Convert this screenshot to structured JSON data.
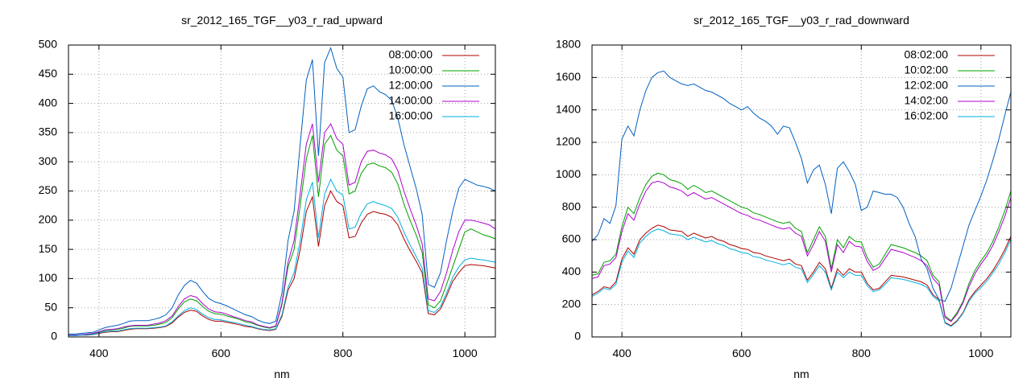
{
  "chart_data": [
    {
      "type": "line",
      "title": "sr_2012_165_TGF__y03_r_rad_upward",
      "xlabel": "nm",
      "ylabel": "",
      "xlim": [
        350,
        1050
      ],
      "ylim": [
        0,
        500
      ],
      "xticks": [
        400,
        600,
        800,
        1000
      ],
      "yticks": [
        0,
        50,
        100,
        150,
        200,
        250,
        300,
        350,
        400,
        450,
        500
      ],
      "grid": true,
      "legend_position": "top-right",
      "x": [
        350,
        360,
        370,
        380,
        390,
        400,
        410,
        420,
        430,
        440,
        450,
        460,
        470,
        480,
        490,
        500,
        510,
        520,
        530,
        540,
        550,
        560,
        570,
        580,
        590,
        600,
        610,
        620,
        630,
        640,
        650,
        660,
        670,
        680,
        690,
        700,
        710,
        720,
        730,
        740,
        750,
        760,
        770,
        780,
        790,
        800,
        810,
        820,
        830,
        840,
        850,
        860,
        870,
        880,
        890,
        900,
        910,
        920,
        930,
        940,
        950,
        960,
        970,
        980,
        990,
        1000,
        1010,
        1020,
        1030,
        1040,
        1050
      ],
      "series": [
        {
          "name": "08:00:00",
          "color": "#b00000",
          "values": [
            2,
            2,
            3,
            3,
            4,
            6,
            8,
            9,
            9,
            11,
            13,
            14,
            14,
            14,
            15,
            16,
            18,
            24,
            34,
            42,
            46,
            44,
            36,
            30,
            27,
            27,
            25,
            23,
            21,
            18,
            17,
            14,
            12,
            11,
            13,
            35,
            80,
            100,
            150,
            215,
            240,
            155,
            225,
            250,
            232,
            225,
            170,
            172,
            195,
            210,
            215,
            212,
            210,
            205,
            192,
            168,
            148,
            130,
            110,
            40,
            38,
            48,
            70,
            95,
            110,
            122,
            124,
            123,
            122,
            120,
            118
          ]
        },
        {
          "name": "10:00:00",
          "color": "#00a000",
          "values": [
            3,
            3,
            4,
            4,
            5,
            8,
            11,
            12,
            13,
            15,
            18,
            19,
            19,
            19,
            20,
            22,
            25,
            33,
            48,
            60,
            65,
            62,
            52,
            44,
            40,
            39,
            36,
            33,
            30,
            26,
            24,
            20,
            17,
            15,
            18,
            55,
            120,
            150,
            225,
            305,
            345,
            240,
            330,
            345,
            320,
            310,
            245,
            250,
            280,
            295,
            298,
            293,
            290,
            282,
            262,
            228,
            200,
            175,
            145,
            55,
            50,
            62,
            90,
            120,
            150,
            180,
            185,
            180,
            175,
            172,
            168
          ]
        },
        {
          "name": "12:00:00",
          "color": "#0060c0",
          "values": [
            5,
            5,
            6,
            7,
            8,
            12,
            16,
            18,
            20,
            23,
            27,
            28,
            28,
            28,
            30,
            33,
            38,
            50,
            72,
            88,
            97,
            92,
            78,
            66,
            60,
            57,
            53,
            48,
            43,
            38,
            35,
            29,
            25,
            23,
            27,
            75,
            165,
            215,
            330,
            440,
            475,
            310,
            470,
            495,
            460,
            445,
            350,
            355,
            395,
            425,
            430,
            420,
            415,
            405,
            375,
            330,
            292,
            255,
            210,
            90,
            85,
            110,
            165,
            215,
            255,
            270,
            265,
            260,
            258,
            255,
            250
          ]
        },
        {
          "name": "14:00:00",
          "color": "#b000d0",
          "values": [
            3,
            3,
            4,
            5,
            6,
            9,
            12,
            13,
            14,
            17,
            19,
            20,
            20,
            20,
            22,
            24,
            28,
            36,
            52,
            65,
            71,
            68,
            57,
            48,
            43,
            42,
            39,
            35,
            32,
            28,
            26,
            21,
            18,
            16,
            19,
            58,
            128,
            165,
            245,
            330,
            365,
            265,
            350,
            365,
            340,
            330,
            260,
            265,
            300,
            318,
            320,
            315,
            312,
            305,
            285,
            250,
            220,
            192,
            160,
            65,
            62,
            78,
            110,
            148,
            180,
            200,
            200,
            198,
            195,
            192,
            185
          ]
        },
        {
          "name": "16:00:00",
          "color": "#00b0e0",
          "values": [
            2,
            2,
            3,
            4,
            4,
            7,
            9,
            10,
            10,
            12,
            14,
            15,
            15,
            15,
            16,
            17,
            19,
            26,
            36,
            45,
            50,
            47,
            39,
            33,
            30,
            29,
            27,
            25,
            23,
            20,
            18,
            15,
            13,
            12,
            14,
            38,
            85,
            110,
            165,
            235,
            265,
            170,
            245,
            270,
            250,
            243,
            185,
            188,
            212,
            228,
            232,
            228,
            225,
            220,
            205,
            180,
            158,
            138,
            118,
            45,
            42,
            52,
            75,
            102,
            120,
            132,
            135,
            133,
            132,
            130,
            128
          ]
        }
      ]
    },
    {
      "type": "line",
      "title": "sr_2012_165_TGF__y03_r_rad_downward",
      "xlabel": "nm",
      "ylabel": "",
      "xlim": [
        350,
        1050
      ],
      "ylim": [
        0,
        1800
      ],
      "xticks": [
        400,
        600,
        800,
        1000
      ],
      "yticks": [
        0,
        200,
        400,
        600,
        800,
        1000,
        1200,
        1400,
        1600,
        1800
      ],
      "grid": true,
      "legend_position": "top-right",
      "x": [
        350,
        360,
        370,
        380,
        390,
        400,
        410,
        420,
        430,
        440,
        450,
        460,
        470,
        480,
        490,
        500,
        510,
        520,
        530,
        540,
        550,
        560,
        570,
        580,
        590,
        600,
        610,
        620,
        630,
        640,
        650,
        660,
        670,
        680,
        690,
        700,
        710,
        720,
        730,
        740,
        750,
        760,
        770,
        780,
        790,
        800,
        810,
        820,
        830,
        840,
        850,
        860,
        870,
        880,
        890,
        900,
        910,
        920,
        930,
        940,
        950,
        960,
        970,
        980,
        990,
        1000,
        1010,
        1020,
        1030,
        1040,
        1050
      ],
      "series": [
        {
          "name": "08:02:00",
          "color": "#b00000",
          "values": [
            260,
            280,
            310,
            300,
            340,
            480,
            550,
            510,
            600,
            640,
            670,
            690,
            680,
            660,
            655,
            650,
            620,
            640,
            625,
            610,
            620,
            600,
            590,
            570,
            560,
            545,
            540,
            520,
            515,
            500,
            490,
            480,
            470,
            480,
            450,
            440,
            350,
            400,
            460,
            420,
            300,
            420,
            380,
            420,
            400,
            400,
            330,
            290,
            300,
            340,
            380,
            375,
            370,
            360,
            350,
            340,
            320,
            260,
            230,
            90,
            70,
            100,
            150,
            230,
            280,
            320,
            360,
            410,
            470,
            540,
            620
          ]
        },
        {
          "name": "10:02:00",
          "color": "#00a000",
          "values": [
            380,
            390,
            460,
            470,
            510,
            680,
            800,
            760,
            860,
            940,
            990,
            1010,
            1000,
            970,
            960,
            945,
            910,
            935,
            915,
            890,
            900,
            880,
            860,
            840,
            820,
            800,
            790,
            765,
            755,
            740,
            725,
            710,
            700,
            710,
            670,
            650,
            520,
            600,
            680,
            620,
            420,
            600,
            550,
            620,
            590,
            585,
            490,
            430,
            450,
            510,
            570,
            560,
            550,
            535,
            520,
            500,
            470,
            380,
            340,
            130,
            100,
            150,
            220,
            330,
            410,
            470,
            520,
            590,
            680,
            780,
            900
          ]
        },
        {
          "name": "12:02:00",
          "color": "#0060c0",
          "values": [
            590,
            630,
            730,
            700,
            810,
            1220,
            1300,
            1240,
            1400,
            1520,
            1600,
            1630,
            1640,
            1600,
            1580,
            1560,
            1550,
            1560,
            1540,
            1520,
            1510,
            1490,
            1470,
            1440,
            1420,
            1400,
            1420,
            1380,
            1350,
            1330,
            1300,
            1250,
            1300,
            1290,
            1200,
            1100,
            950,
            1030,
            1060,
            940,
            760,
            1040,
            1080,
            1020,
            940,
            780,
            800,
            900,
            890,
            880,
            880,
            860,
            800,
            700,
            620,
            480,
            420,
            300,
            230,
            220,
            300,
            430,
            560,
            690,
            780,
            870,
            970,
            1090,
            1220,
            1370,
            1510
          ]
        },
        {
          "name": "14:02:00",
          "color": "#b000d0",
          "values": [
            360,
            370,
            440,
            450,
            490,
            650,
            760,
            720,
            820,
            900,
            950,
            960,
            950,
            925,
            915,
            900,
            870,
            890,
            870,
            850,
            860,
            840,
            820,
            800,
            780,
            760,
            750,
            730,
            720,
            705,
            690,
            675,
            665,
            675,
            640,
            620,
            500,
            570,
            650,
            590,
            400,
            570,
            520,
            590,
            560,
            555,
            465,
            410,
            430,
            485,
            540,
            530,
            520,
            505,
            490,
            470,
            440,
            360,
            320,
            120,
            95,
            140,
            210,
            310,
            390,
            450,
            500,
            565,
            650,
            745,
            860
          ]
        },
        {
          "name": "16:02:00",
          "color": "#00b0e0",
          "values": [
            250,
            270,
            300,
            290,
            325,
            460,
            530,
            490,
            580,
            620,
            650,
            665,
            655,
            635,
            630,
            625,
            600,
            615,
            600,
            585,
            595,
            575,
            565,
            545,
            535,
            520,
            515,
            495,
            490,
            475,
            465,
            455,
            445,
            455,
            430,
            420,
            335,
            385,
            440,
            400,
            290,
            400,
            365,
            400,
            380,
            380,
            315,
            280,
            290,
            325,
            365,
            360,
            355,
            345,
            335,
            325,
            305,
            250,
            220,
            85,
            65,
            95,
            145,
            220,
            270,
            305,
            345,
            395,
            450,
            520,
            600
          ]
        }
      ]
    }
  ]
}
